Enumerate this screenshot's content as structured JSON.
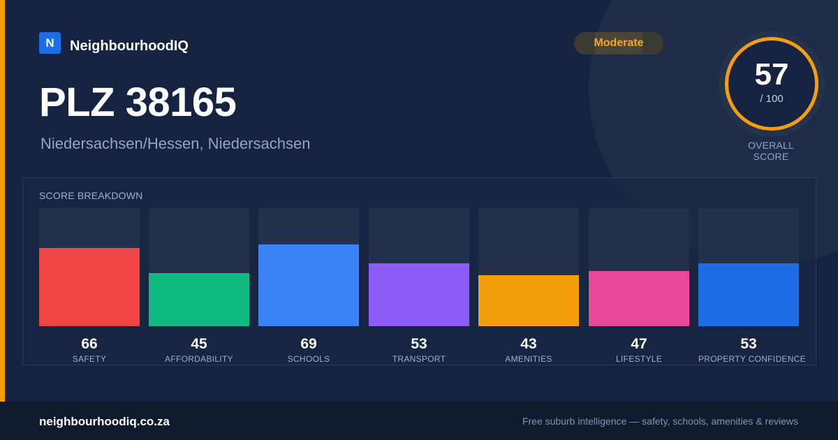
{
  "brand": {
    "logo_letter": "N",
    "name": "NeighbourhoodIQ"
  },
  "badge": {
    "label": "Moderate"
  },
  "location": {
    "title": "PLZ 38165",
    "subtitle": "Niedersachsen/Hessen, Niedersachsen"
  },
  "overall": {
    "score": "57",
    "max": "/ 100",
    "label": "OVERALL SCORE",
    "ring_color": "#f59e0b"
  },
  "breakdown": {
    "title": "SCORE BREAKDOWN",
    "max_value": 100
  },
  "chart_data": {
    "type": "bar",
    "title": "SCORE BREAKDOWN",
    "categories": [
      "SAFETY",
      "AFFORDABILITY",
      "SCHOOLS",
      "TRANSPORT",
      "AMENITIES",
      "LIFESTYLE",
      "PROPERTY CONFIDENCE"
    ],
    "values": [
      66,
      45,
      69,
      53,
      43,
      47,
      53
    ],
    "colors": [
      "#ef4444",
      "#10b981",
      "#3b82f6",
      "#8b5cf6",
      "#f59e0b",
      "#ec4899",
      "#1d6ee6"
    ],
    "ylim": [
      0,
      100
    ]
  },
  "footer": {
    "url": "neighbourhoodiq.co.za",
    "tagline": "Free suburb intelligence — safety, schools, amenities & reviews"
  },
  "colors": {
    "accent": "#f59e0b",
    "background": "#152340",
    "brand_blue": "#1d6ee6"
  }
}
